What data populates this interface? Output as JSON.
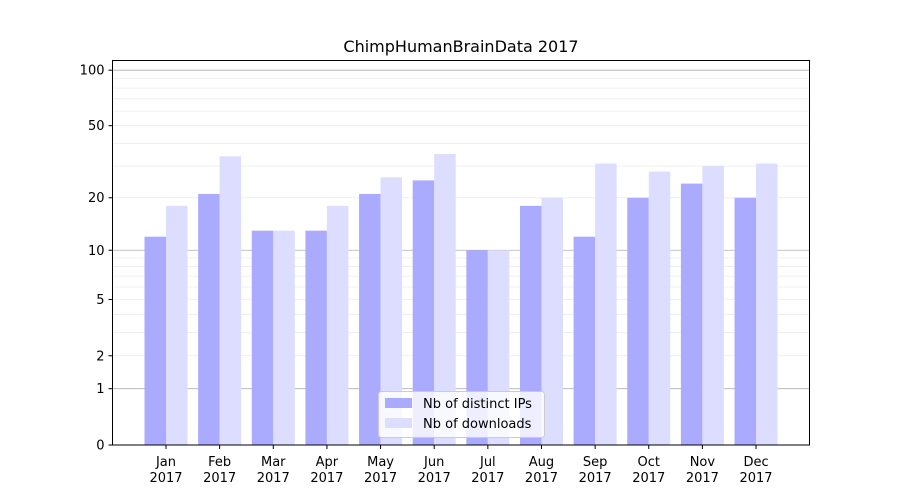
{
  "chart_data": {
    "type": "bar",
    "title": "ChimpHumanBrainData 2017",
    "xlabel": "",
    "ylabel": "",
    "yscale": "log(1+y)",
    "ylim": [
      0,
      110
    ],
    "yticks": [
      0,
      1,
      2,
      5,
      10,
      20,
      50,
      100
    ],
    "grid": true,
    "legend_position": "lower-center",
    "categories": [
      "Jan\n2017",
      "Feb\n2017",
      "Mar\n2017",
      "Apr\n2017",
      "May\n2017",
      "Jun\n2017",
      "Jul\n2017",
      "Aug\n2017",
      "Sep\n2017",
      "Oct\n2017",
      "Nov\n2017",
      "Dec\n2017"
    ],
    "series": [
      {
        "name": "Nb of distinct IPs",
        "color": "#aaaaff",
        "values": [
          12,
          21,
          13,
          13,
          21,
          25,
          10,
          18,
          12,
          20,
          24,
          20
        ]
      },
      {
        "name": "Nb of downloads",
        "color": "#ddddff",
        "values": [
          18,
          34,
          13,
          18,
          26,
          35,
          10,
          20,
          31,
          28,
          30,
          31
        ]
      }
    ]
  }
}
